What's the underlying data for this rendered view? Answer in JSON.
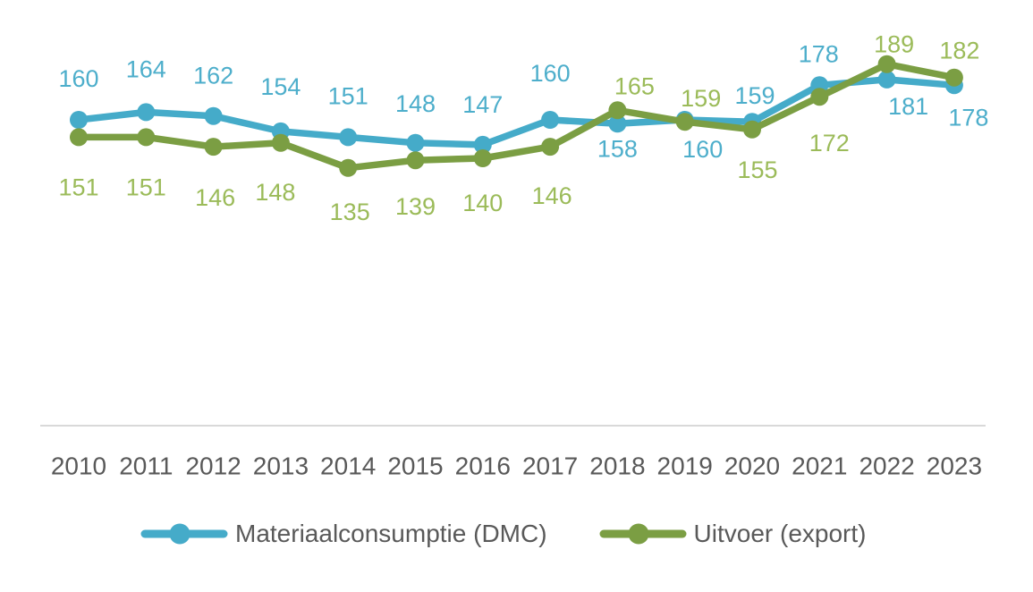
{
  "chart_data": {
    "type": "line",
    "categories": [
      "2010",
      "2011",
      "2012",
      "2013",
      "2014",
      "2015",
      "2016",
      "2017",
      "2018",
      "2019",
      "2020",
      "2021",
      "2022",
      "2023"
    ],
    "series": [
      {
        "name": "Materiaalconsumptie (DMC)",
        "color": "#45ABC9",
        "label_color": "#4DAECB",
        "values": [
          160,
          164,
          162,
          154,
          151,
          148,
          147,
          160,
          158,
          160,
          159,
          178,
          181,
          178
        ]
      },
      {
        "name": "Uitvoer (export)",
        "color": "#7B9E43",
        "label_color": "#9BBB59",
        "values": [
          151,
          151,
          146,
          148,
          135,
          139,
          140,
          146,
          165,
          159,
          155,
          172,
          189,
          182
        ]
      }
    ],
    "title": "",
    "xlabel": "",
    "ylabel": "",
    "ylim": [
      0,
      222
    ],
    "grid": false,
    "data_labels": true,
    "markers": "circle",
    "legend_position": "bottom",
    "y_axis_visible": false,
    "x_axis_visible": true
  },
  "colors": {
    "background": "#FFFFFF",
    "axis_line": "#D9D9D9",
    "axis_text": "#595959",
    "legend_text": "#595959"
  }
}
